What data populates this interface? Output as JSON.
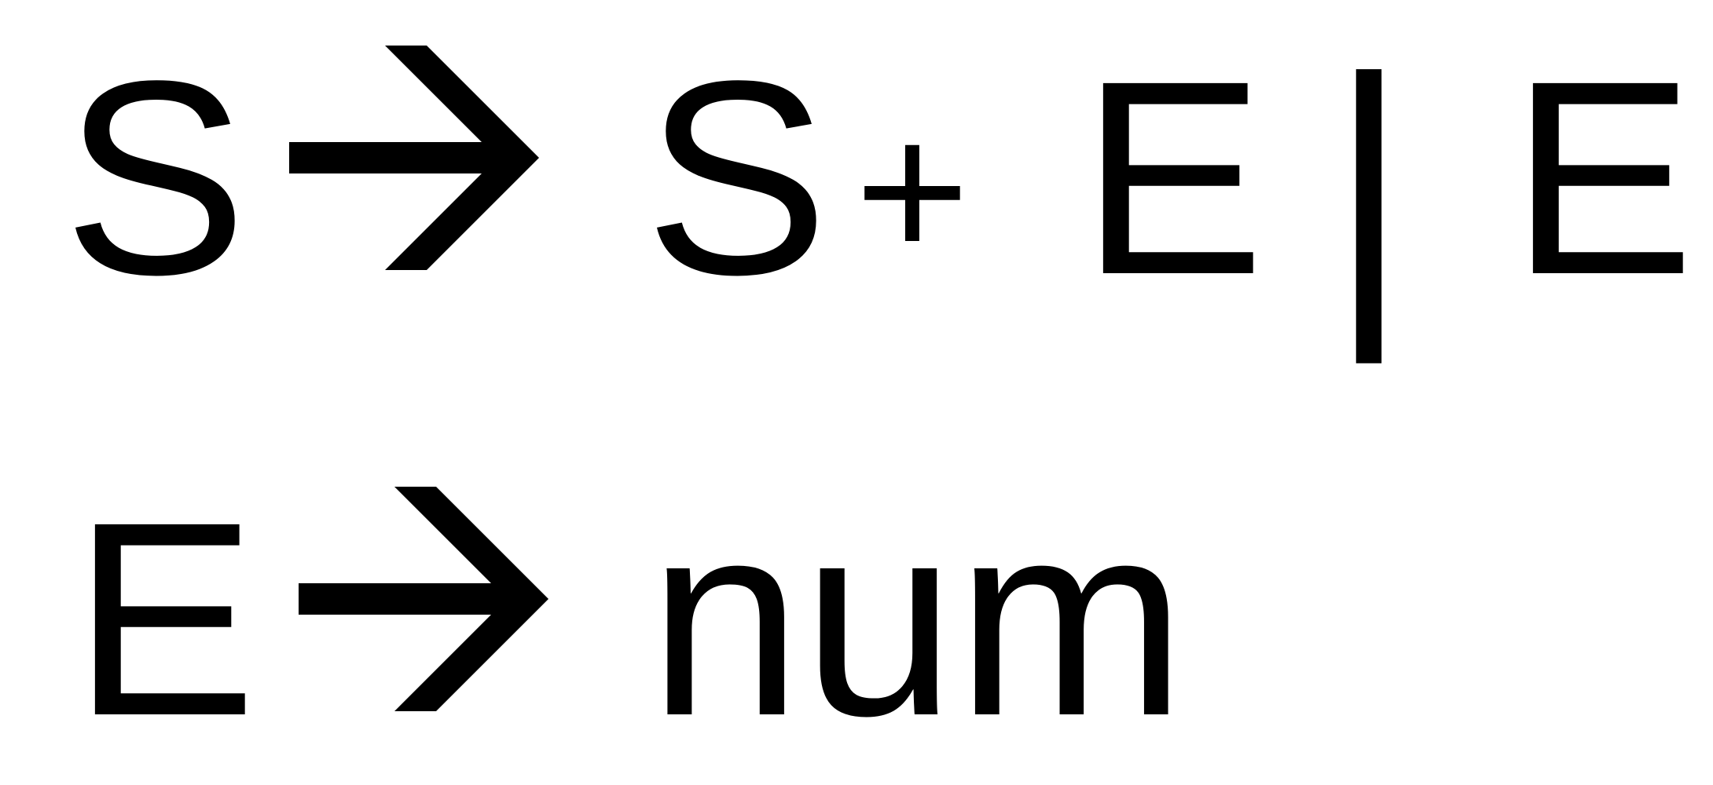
{
  "grammar": {
    "rule1": {
      "lhs": "S",
      "arrow": "→",
      "rhs": {
        "s": "S",
        "plus": "+",
        "e1": "E",
        "alt": "|",
        "e2": "E"
      }
    },
    "rule2": {
      "lhs": "E",
      "arrow": "→",
      "rhs": {
        "num": "num"
      }
    }
  },
  "colors": {
    "ink": "#000000",
    "background": "#ffffff"
  }
}
